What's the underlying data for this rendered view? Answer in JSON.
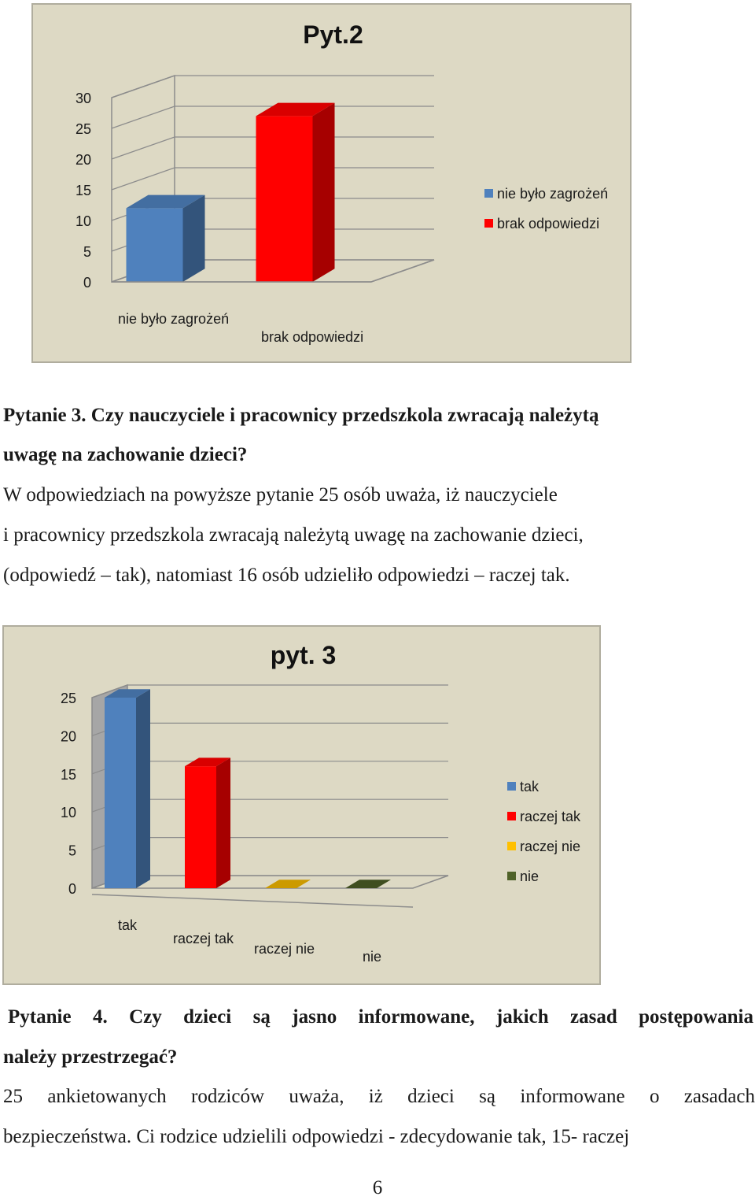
{
  "chart_data": [
    {
      "type": "bar",
      "title": "Pyt.2",
      "categories": [
        "nie było zagrożeń",
        "brak odpowiedzi"
      ],
      "values": [
        12,
        27
      ],
      "ylim": [
        0,
        30
      ],
      "yticks": [
        0,
        5,
        10,
        15,
        20,
        25,
        30
      ],
      "xlabel": "",
      "ylabel": "",
      "legend": [
        "nie było zagrożeń",
        "brak odpowiedzi"
      ],
      "legend_position": "right",
      "colors": [
        "#4f81bd",
        "#ff0000"
      ],
      "grid": true
    },
    {
      "type": "bar",
      "title": "pyt. 3",
      "categories": [
        "tak",
        "raczej tak",
        "raczej nie",
        "nie"
      ],
      "values": [
        25,
        16,
        0,
        0
      ],
      "ylim": [
        0,
        25
      ],
      "yticks": [
        0,
        5,
        10,
        15,
        20,
        25
      ],
      "xlabel": "",
      "ylabel": "",
      "legend": [
        "tak",
        "raczej tak",
        "raczej nie",
        "nie"
      ],
      "legend_position": "right",
      "colors": [
        "#4f81bd",
        "#ff0000",
        "#ffc000",
        "#4f6228"
      ],
      "grid": true
    }
  ],
  "doc": {
    "q3_heading_line1": "Pytanie 3. Czy nauczyciele i pracownicy przedszkola zwracają należytą",
    "q3_heading_line2": "uwagę na zachowanie dzieci?",
    "q3_body_line1": "W odpowiedziach na powyższe pytanie 25 osób uważa, iż nauczyciele",
    "q3_body_line2": "i pracownicy przedszkola zwracają należytą uwagę na zachowanie dzieci,",
    "q3_body_line3": "(odpowiedź – tak), natomiast 16 osób udzieliło odpowiedzi – raczej tak.",
    "q4_heading_line1": "Pytanie 4. Czy dzieci są jasno informowane, jakich zasad postępowania",
    "q4_heading_line2": "należy przestrzegać?",
    "q4_body_line1": "25 ankietowanych rodziców uważa, iż dzieci są informowane o zasadach",
    "q4_body_line2": "bezpieczeństwa. Ci rodzice udzielili odpowiedzi - zdecydowanie tak, 15- raczej",
    "page_number": "6"
  }
}
